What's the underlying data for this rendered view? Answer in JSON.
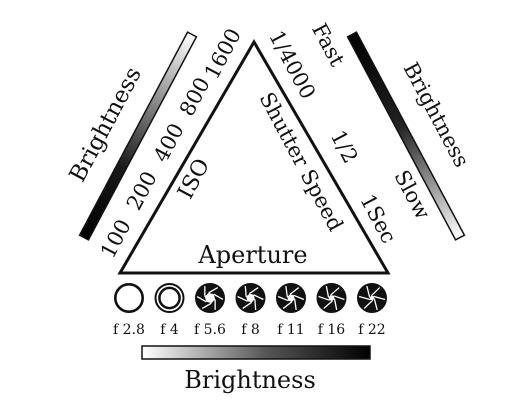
{
  "diagram": {
    "title_center": "Aperture",
    "iso": {
      "label": "ISO",
      "values": [
        "100",
        "200",
        "400",
        "800",
        "1600"
      ],
      "brightness_label": "Brightness"
    },
    "shutter": {
      "label": "Shutter Speed",
      "fast_label": "Fast",
      "slow_label": "Slow",
      "values": [
        "1/4000",
        "1/2",
        "1Sec"
      ],
      "brightness_label": "Brightness"
    },
    "aperture": {
      "stops": [
        "f 2.8",
        "f 4",
        "f 5.6",
        "f 8",
        "f 11",
        "f 16",
        "f 22"
      ],
      "brightness_label": "Brightness"
    },
    "colors": {
      "ink": "#111111",
      "paper": "#ffffff"
    }
  }
}
